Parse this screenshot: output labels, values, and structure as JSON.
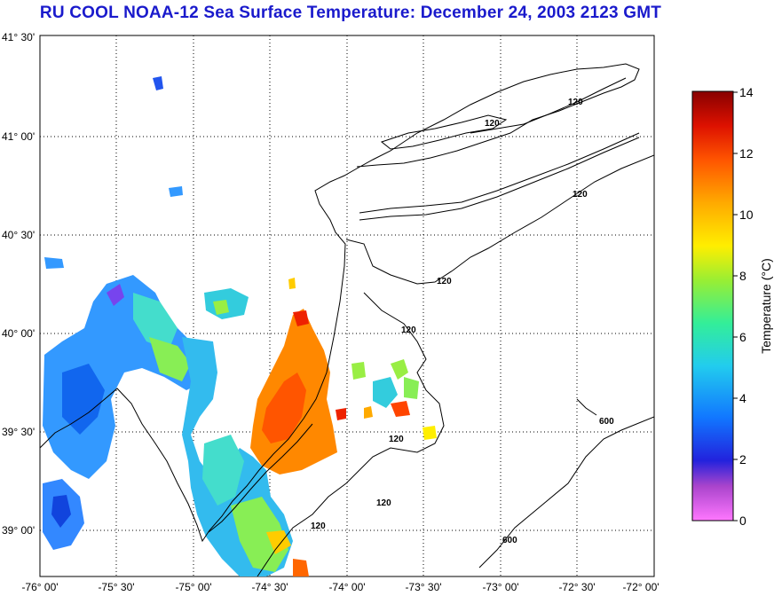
{
  "title": "RU COOL  NOAA-12  Sea Surface Temperature:  December 24, 2003 2123 GMT",
  "map": {
    "lat_labels": [
      "41° 30'",
      "41° 00'",
      "40° 30'",
      "40° 00'",
      "39° 30'",
      "39° 00'"
    ],
    "lon_labels": [
      "-76° 00'",
      "-75° 30'",
      "-75° 00'",
      "-74° 30'",
      "-74° 00'",
      "-73° 30'",
      "-73° 00'",
      "-72° 30'",
      "-72° 00'"
    ],
    "contour_labels": [
      "120",
      "120",
      "120",
      "120",
      "120",
      "120",
      "120",
      "120",
      "600",
      "600"
    ]
  },
  "colorbar": {
    "label": "Temperature (°C)",
    "ticks": [
      "14",
      "12",
      "10",
      "8",
      "6",
      "4",
      "2",
      "0"
    ],
    "range": [
      0,
      14
    ],
    "stops": [
      "#ff66ff",
      "#aa33cc",
      "#2222dd",
      "#1177ff",
      "#22ccee",
      "#33ee99",
      "#99ee33",
      "#ffee00",
      "#ffaa00",
      "#ff5500",
      "#ee1100",
      "#880000"
    ]
  }
}
